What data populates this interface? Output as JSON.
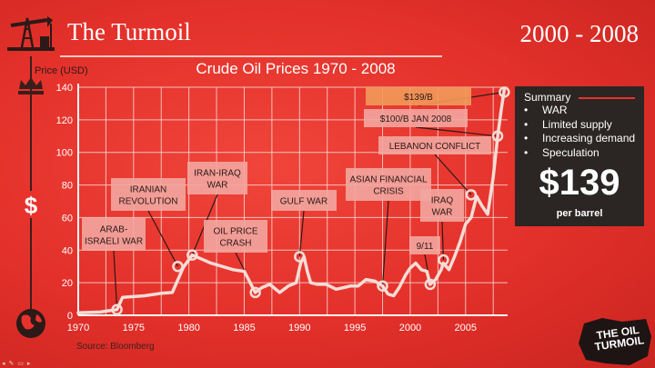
{
  "slide": {
    "title": "The Turmoil",
    "years": "2000 - 2008",
    "source": "Source: Bloomberg",
    "logo_text": "THE OIL TURMOIL"
  },
  "summary": {
    "heading": "Summary",
    "items": [
      "WAR",
      "Limited supply",
      "Increasing demand",
      "Speculation"
    ],
    "big_price": "$139",
    "per_barrel": "per barrel"
  },
  "icons": [
    "oil-derrick-icon",
    "crown-icon",
    "dollar-icon",
    "globe-icon",
    "slide-nav-icons"
  ],
  "colors": {
    "background": "#e8322b",
    "line": "#f5dcd6",
    "summary_box": "#2b2624",
    "label_box": "#f2a6a0",
    "highlight_box": "#f29a5a"
  },
  "chart_data": {
    "type": "line",
    "title": "Crude Oil Prices 1970 - 2008",
    "ylabel": "Price (USD)",
    "xlabel": "",
    "xlim": [
      1970,
      2008.8
    ],
    "ylim": [
      0,
      140
    ],
    "xticks": [
      1970,
      1975,
      1980,
      1985,
      1990,
      1995,
      2000,
      2005
    ],
    "yticks": [
      0,
      20,
      40,
      60,
      80,
      100,
      120,
      140
    ],
    "grid": true,
    "legend": "none",
    "x": [
      1970,
      1972,
      1973.5,
      1974,
      1976,
      1977.5,
      1978.5,
      1979.5,
      1980.3,
      1981,
      1982,
      1983,
      1984,
      1985,
      1986,
      1986.6,
      1987.3,
      1988.2,
      1989,
      1989.7,
      1990.1,
      1990.4,
      1990.7,
      1991,
      1991.6,
      1992.4,
      1993.3,
      1994,
      1994.6,
      1995.3,
      1996,
      1996.8,
      1997.5,
      1998,
      1998.5,
      1999,
      1999.6,
      2000,
      2000.5,
      2001,
      2001.5,
      2001.8,
      2002.3,
      2002.8,
      2003,
      2003.5,
      2004,
      2004.5,
      2005,
      2005.5,
      2006,
      2006.5,
      2007,
      2007.5,
      2007.9,
      2008.2,
      2008.5
    ],
    "y": [
      1.5,
      2,
      3.5,
      11,
      12,
      13.5,
      14,
      29.5,
      37,
      35,
      32,
      30,
      28,
      27,
      14,
      17,
      19,
      14,
      18,
      20,
      32,
      36,
      27,
      20,
      19,
      19,
      16,
      17,
      18,
      18,
      22,
      21,
      18,
      13,
      12,
      17,
      25,
      29,
      32,
      28,
      27,
      19,
      22,
      28,
      32,
      28,
      36,
      45,
      56,
      60,
      73,
      67,
      62,
      85,
      110,
      125,
      139
    ],
    "markers": [
      {
        "x": 1973.5,
        "y": 3.5
      },
      {
        "x": 1979,
        "y": 30
      },
      {
        "x": 1980.3,
        "y": 37
      },
      {
        "x": 1986,
        "y": 14
      },
      {
        "x": 1990,
        "y": 36
      },
      {
        "x": 1997.5,
        "y": 18
      },
      {
        "x": 2001.8,
        "y": 19
      },
      {
        "x": 2003,
        "y": 34
      },
      {
        "x": 2005.5,
        "y": 74
      },
      {
        "x": 2007.9,
        "y": 110
      },
      {
        "x": 2008.5,
        "y": 137
      }
    ],
    "annotations": [
      {
        "text": [
          "ARAB-",
          "ISRAELI WAR"
        ],
        "x": 1973.5,
        "y": 3.5
      },
      {
        "text": [
          "IRANIAN",
          "REVOLUTION"
        ],
        "x": 1979,
        "y": 30
      },
      {
        "text": [
          "IRAN-IRAQ",
          "WAR"
        ],
        "x": 1980.3,
        "y": 37
      },
      {
        "text": [
          "OIL PRICE",
          "CRASH"
        ],
        "x": 1986,
        "y": 14
      },
      {
        "text": [
          "GULF WAR"
        ],
        "x": 1990,
        "y": 36
      },
      {
        "text": [
          "ASIAN FINANCIAL",
          "CRISIS"
        ],
        "x": 1997.5,
        "y": 18
      },
      {
        "text": [
          "9/11"
        ],
        "x": 2001.8,
        "y": 19
      },
      {
        "text": [
          "IRAQ",
          "WAR"
        ],
        "x": 2003,
        "y": 34
      },
      {
        "text": [
          "LEBANON CONFLICT"
        ],
        "x": 2005.5,
        "y": 74
      },
      {
        "text": [
          "$100/B JAN 2008"
        ],
        "x": 2007.9,
        "y": 110
      },
      {
        "text": [
          "$139/B"
        ],
        "x": 2008.5,
        "y": 137
      }
    ]
  }
}
